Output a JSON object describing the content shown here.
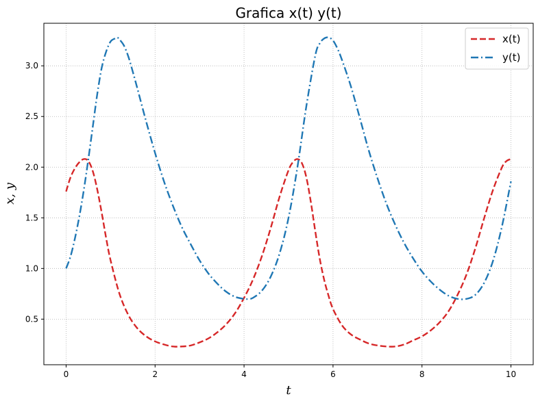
{
  "chart_data": {
    "type": "line",
    "title": "Grafica x(t) y(t)",
    "xlabel": "t",
    "ylabel": "x, y",
    "xlim": [
      -0.5,
      10.5
    ],
    "ylim": [
      0.05,
      3.42
    ],
    "xticks": [
      0,
      2,
      4,
      6,
      8,
      10
    ],
    "xtick_labels": [
      "0",
      "2",
      "4",
      "6",
      "8",
      "10"
    ],
    "yticks": [
      0.5,
      1.0,
      1.5,
      2.0,
      2.5,
      3.0
    ],
    "ytick_labels": [
      "0.5",
      "1.0",
      "1.5",
      "2.0",
      "2.5",
      "3.0"
    ],
    "grid": true,
    "legend_position": "top-right",
    "series": [
      {
        "name": "x(t)",
        "color": "#d62728",
        "linestyle": "dashed",
        "x": [
          0,
          0.1,
          0.2,
          0.3,
          0.4,
          0.5,
          0.6,
          0.7,
          0.8,
          0.9,
          1.0,
          1.2,
          1.4,
          1.6,
          1.8,
          2.0,
          2.2,
          2.4,
          2.6,
          2.8,
          3.0,
          3.2,
          3.4,
          3.6,
          3.8,
          4.0,
          4.2,
          4.4,
          4.6,
          4.8,
          5.0,
          5.1,
          5.2,
          5.3,
          5.4,
          5.5,
          5.6,
          5.7,
          5.8,
          5.9,
          6.0,
          6.2,
          6.4,
          6.6,
          6.8,
          7.0,
          7.2,
          7.4,
          7.6,
          7.8,
          8.0,
          8.2,
          8.4,
          8.6,
          8.8,
          9.0,
          9.2,
          9.4,
          9.6,
          9.8,
          9.9,
          10.0
        ],
        "y": [
          1.76,
          1.9,
          1.99,
          2.05,
          2.08,
          2.06,
          1.96,
          1.78,
          1.55,
          1.3,
          1.08,
          0.75,
          0.54,
          0.41,
          0.33,
          0.28,
          0.25,
          0.23,
          0.23,
          0.24,
          0.27,
          0.31,
          0.37,
          0.45,
          0.56,
          0.71,
          0.89,
          1.12,
          1.4,
          1.71,
          1.97,
          2.05,
          2.08,
          2.04,
          1.9,
          1.66,
          1.37,
          1.1,
          0.89,
          0.73,
          0.6,
          0.44,
          0.35,
          0.3,
          0.26,
          0.24,
          0.23,
          0.23,
          0.25,
          0.29,
          0.33,
          0.39,
          0.47,
          0.58,
          0.74,
          0.94,
          1.2,
          1.5,
          1.78,
          2.0,
          2.06,
          2.08
        ]
      },
      {
        "name": "y(t)",
        "color": "#1f77b4",
        "linestyle": "dashdot",
        "x": [
          0,
          0.1,
          0.2,
          0.3,
          0.4,
          0.5,
          0.6,
          0.7,
          0.8,
          0.9,
          1.0,
          1.1,
          1.15,
          1.2,
          1.3,
          1.4,
          1.5,
          1.6,
          1.8,
          2.0,
          2.2,
          2.4,
          2.6,
          2.8,
          3.0,
          3.2,
          3.4,
          3.6,
          3.8,
          4.0,
          4.1,
          4.2,
          4.4,
          4.6,
          4.8,
          5.0,
          5.2,
          5.4,
          5.6,
          5.7,
          5.8,
          5.9,
          6.0,
          6.1,
          6.2,
          6.4,
          6.6,
          6.8,
          7.0,
          7.2,
          7.4,
          7.6,
          7.8,
          8.0,
          8.2,
          8.4,
          8.6,
          8.8,
          9.0,
          9.2,
          9.4,
          9.6,
          9.8,
          10.0
        ],
        "y": [
          1.0,
          1.12,
          1.3,
          1.52,
          1.78,
          2.08,
          2.4,
          2.72,
          2.98,
          3.14,
          3.24,
          3.27,
          3.28,
          3.26,
          3.2,
          3.09,
          2.94,
          2.78,
          2.45,
          2.14,
          1.86,
          1.62,
          1.41,
          1.24,
          1.08,
          0.95,
          0.85,
          0.77,
          0.72,
          0.7,
          0.7,
          0.71,
          0.78,
          0.92,
          1.15,
          1.5,
          2.0,
          2.6,
          3.1,
          3.22,
          3.27,
          3.28,
          3.25,
          3.17,
          3.06,
          2.8,
          2.49,
          2.17,
          1.89,
          1.64,
          1.43,
          1.25,
          1.1,
          0.97,
          0.87,
          0.79,
          0.73,
          0.7,
          0.7,
          0.74,
          0.86,
          1.08,
          1.42,
          1.86
        ]
      }
    ]
  }
}
